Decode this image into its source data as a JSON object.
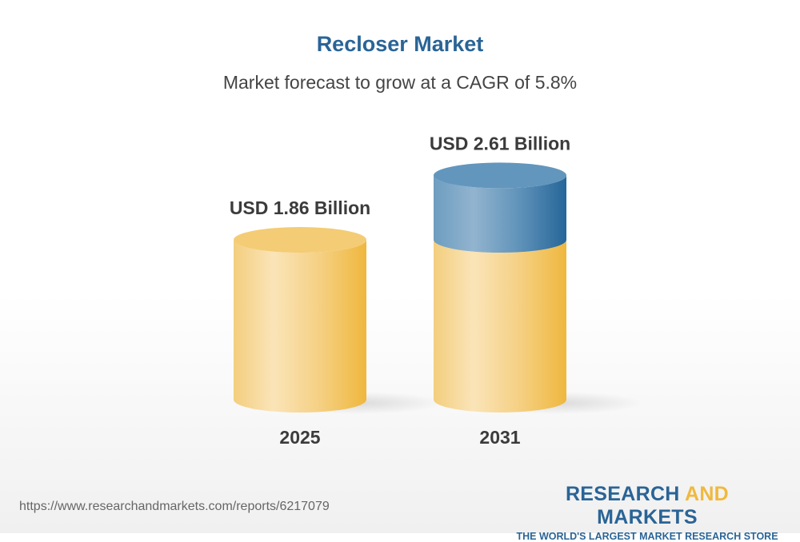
{
  "title": "Recloser Market",
  "subtitle": "Market forecast to grow at a CAGR of 5.8%",
  "chart_data": {
    "type": "bar",
    "style": "3d-cylinder",
    "categories": [
      "2025",
      "2031"
    ],
    "values": [
      1.86,
      2.61
    ],
    "unit": "USD Billion",
    "data_labels": [
      "USD 1.86 Billion",
      "USD 2.61 Billion"
    ],
    "colors": {
      "base": "#f0b93e",
      "growth": "#2a6496"
    }
  },
  "footer": {
    "url": "https://www.researchandmarkets.com/reports/6217079",
    "logo_line1_a": "RESEARCH ",
    "logo_line1_b": "AND",
    "logo_line1_c": " MARKETS",
    "logo_line2": "THE WORLD'S LARGEST MARKET RESEARCH STORE"
  }
}
